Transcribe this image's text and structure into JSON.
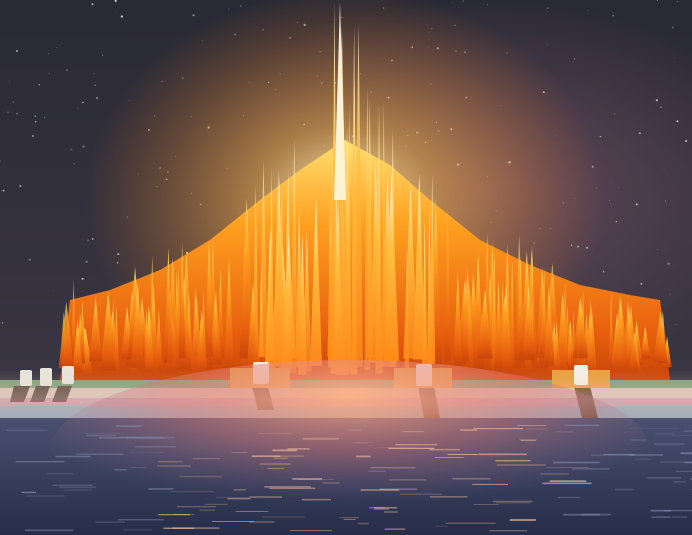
{
  "scene": {
    "subject": "flame-crystal-cluster-on-pier",
    "palette": {
      "sky_top": "#2a2a36",
      "sky_bottom": "#3a3540",
      "nebula": "#6a4a5e",
      "flame_core": "#fff3c4",
      "flame_mid": "#ffb020",
      "flame_outer": "#e85a10",
      "flame_deep": "#b8380a",
      "deck_top": "#7fa07a",
      "deck_mid": "#d9b8b0",
      "deck_low": "#a7b9c6",
      "block_orange": "#e8a040",
      "block_white": "#f2efe6",
      "post_brown": "#6a4a36",
      "water_dark": "#2b3450",
      "water_mid": "#4a4e70",
      "reflection": "#ff9a6a"
    }
  }
}
